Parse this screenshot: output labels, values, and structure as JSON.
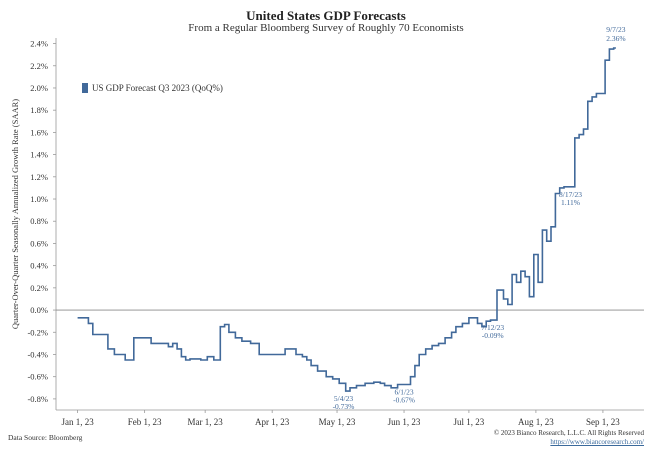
{
  "chart_data": {
    "type": "line",
    "title": "United States GDP Forecasts",
    "subtitle": "From a Regular Bloomberg Survey of Roughly 70 Economists",
    "ylabel": "Quarter-Over-Quarter Seasonally Annualized Growth Rate (SAAR)",
    "ylim": [
      -0.9,
      2.45
    ],
    "yticks": [
      -0.8,
      -0.6,
      -0.4,
      -0.2,
      0.0,
      0.2,
      0.4,
      0.6,
      0.8,
      1.0,
      1.2,
      1.4,
      1.6,
      1.8,
      2.0,
      2.2,
      2.4
    ],
    "ytick_labels": [
      "-0.8%",
      "-0.6%",
      "-0.4%",
      "-0.2%",
      "0.0%",
      "0.2%",
      "0.4%",
      "0.6%",
      "0.8%",
      "1.0%",
      "1.2%",
      "1.4%",
      "1.6%",
      "1.8%",
      "2.0%",
      "2.2%",
      "2.4%"
    ],
    "xticks": [
      "2023-01-01",
      "2023-02-01",
      "2023-03-01",
      "2023-04-01",
      "2023-05-01",
      "2023-06-01",
      "2023-07-01",
      "2023-08-01",
      "2023-09-01"
    ],
    "xtick_labels": [
      "Jan 1, 23",
      "Feb 1, 23",
      "Mar 1, 23",
      "Apr 1, 23",
      "May 1, 23",
      "Jun 1, 23",
      "Jul 1, 23",
      "Aug 1, 23",
      "Sep 1, 23"
    ],
    "xlim": [
      "2022-12-22",
      "2023-09-20"
    ],
    "zero_line": true,
    "grid": false,
    "legend_position": "top-left",
    "series": [
      {
        "name": "US GDP Forecast Q3 2023 (QoQ%)",
        "color": "#41699a",
        "x": [
          "2023-01-01",
          "2023-01-04",
          "2023-01-06",
          "2023-01-08",
          "2023-01-12",
          "2023-01-15",
          "2023-01-18",
          "2023-01-21",
          "2023-01-23",
          "2023-01-25",
          "2023-01-27",
          "2023-01-30",
          "2023-02-04",
          "2023-02-08",
          "2023-02-12",
          "2023-02-14",
          "2023-02-16",
          "2023-02-18",
          "2023-02-20",
          "2023-02-22",
          "2023-02-24",
          "2023-02-27",
          "2023-03-02",
          "2023-03-05",
          "2023-03-08",
          "2023-03-10",
          "2023-03-12",
          "2023-03-15",
          "2023-03-18",
          "2023-03-22",
          "2023-03-26",
          "2023-03-30",
          "2023-04-03",
          "2023-04-07",
          "2023-04-12",
          "2023-04-15",
          "2023-04-17",
          "2023-04-19",
          "2023-04-22",
          "2023-04-26",
          "2023-04-29",
          "2023-05-02",
          "2023-05-05",
          "2023-05-07",
          "2023-05-10",
          "2023-05-14",
          "2023-05-18",
          "2023-05-21",
          "2023-05-23",
          "2023-05-26",
          "2023-05-29",
          "2023-06-01",
          "2023-06-04",
          "2023-06-06",
          "2023-06-08",
          "2023-06-11",
          "2023-06-14",
          "2023-06-17",
          "2023-06-20",
          "2023-06-23",
          "2023-06-25",
          "2023-06-28",
          "2023-07-01",
          "2023-07-03",
          "2023-07-05",
          "2023-07-07",
          "2023-07-09",
          "2023-07-11",
          "2023-07-12",
          "2023-07-14",
          "2023-07-17",
          "2023-07-19",
          "2023-07-21",
          "2023-07-23",
          "2023-07-25",
          "2023-07-27",
          "2023-07-29",
          "2023-07-31",
          "2023-08-02",
          "2023-08-04",
          "2023-08-06",
          "2023-08-08",
          "2023-08-10",
          "2023-08-12",
          "2023-08-14",
          "2023-08-17",
          "2023-08-19",
          "2023-08-21",
          "2023-08-23",
          "2023-08-25",
          "2023-08-27",
          "2023-08-29",
          "2023-08-31",
          "2023-09-02",
          "2023-09-04",
          "2023-09-06",
          "2023-09-07"
        ],
        "y": [
          -0.07,
          -0.07,
          -0.12,
          -0.22,
          -0.22,
          -0.35,
          -0.4,
          -0.4,
          -0.45,
          -0.45,
          -0.25,
          -0.25,
          -0.3,
          -0.3,
          -0.33,
          -0.3,
          -0.35,
          -0.42,
          -0.45,
          -0.44,
          -0.44,
          -0.45,
          -0.42,
          -0.45,
          -0.15,
          -0.13,
          -0.2,
          -0.25,
          -0.28,
          -0.3,
          -0.4,
          -0.4,
          -0.4,
          -0.35,
          -0.4,
          -0.42,
          -0.45,
          -0.5,
          -0.55,
          -0.6,
          -0.62,
          -0.66,
          -0.73,
          -0.7,
          -0.68,
          -0.66,
          -0.65,
          -0.66,
          -0.68,
          -0.7,
          -0.67,
          -0.67,
          -0.6,
          -0.5,
          -0.4,
          -0.35,
          -0.32,
          -0.3,
          -0.25,
          -0.2,
          -0.15,
          -0.12,
          -0.07,
          -0.07,
          -0.12,
          -0.15,
          -0.1,
          -0.09,
          -0.09,
          0.18,
          0.1,
          0.05,
          0.32,
          0.25,
          0.35,
          0.3,
          0.12,
          0.5,
          0.25,
          0.72,
          0.62,
          0.75,
          1.05,
          1.1,
          1.11,
          1.11,
          1.55,
          1.58,
          1.63,
          1.88,
          1.92,
          1.95,
          1.95,
          2.25,
          2.35,
          2.36,
          2.36
        ]
      }
    ],
    "annotations": [
      {
        "x": "2023-05-04",
        "y": -0.73,
        "date": "5/4/23",
        "value": "-0.73%",
        "position": "below"
      },
      {
        "x": "2023-06-01",
        "y": -0.67,
        "date": "6/1/23",
        "value": "-0.67%",
        "position": "below"
      },
      {
        "x": "2023-07-12",
        "y": -0.09,
        "date": "7/12/23",
        "value": "-0.09%",
        "position": "below"
      },
      {
        "x": "2023-08-17",
        "y": 1.11,
        "date": "8/17/23",
        "value": "1.11%",
        "position": "below"
      },
      {
        "x": "2023-09-07",
        "y": 2.36,
        "date": "9/7/23",
        "value": "2.36%",
        "position": "above"
      }
    ]
  },
  "footer": {
    "source": "Data Source: Bloomberg",
    "copyright": "© 2023 Bianco Research, L.L.C. All Rights Reserved",
    "url": "https://www.biancoresearch.com/"
  }
}
